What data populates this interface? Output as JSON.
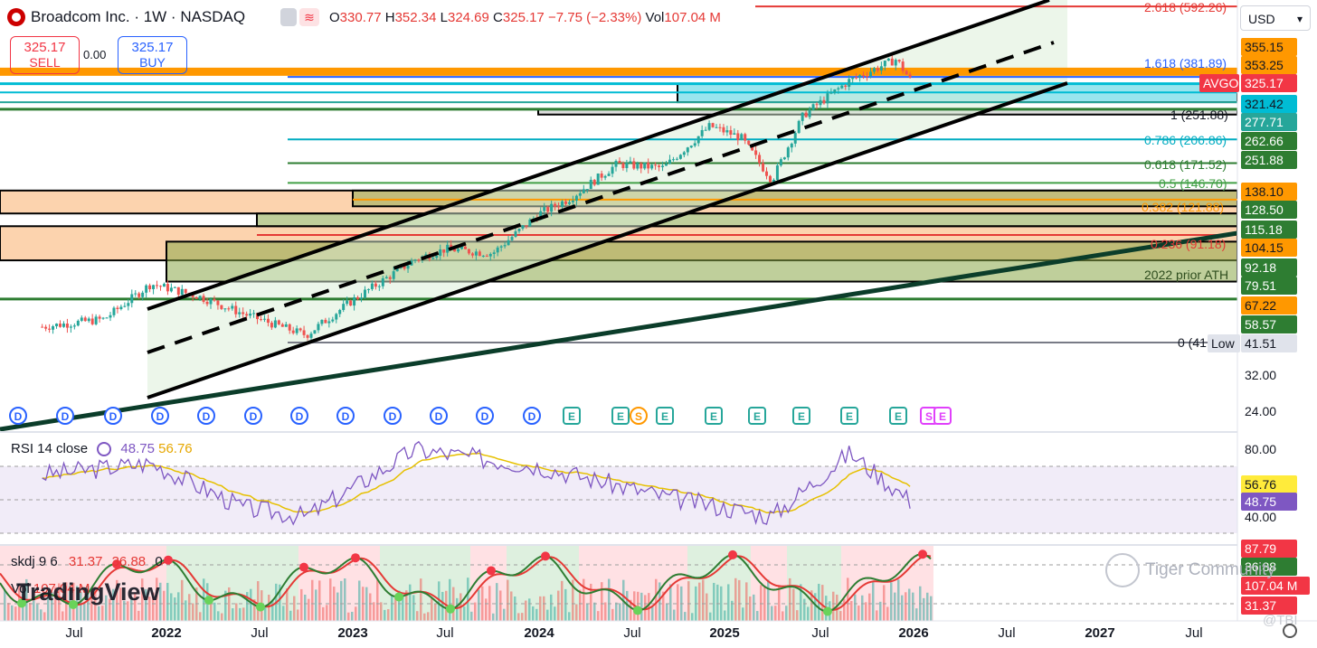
{
  "header": {
    "title": "Broadcom Inc. · 1W · NASDAQ",
    "open_label": "O",
    "open": "330.77",
    "high_label": "H",
    "high": "352.34",
    "low_label": "L",
    "low": "324.69",
    "close_label": "C",
    "close": "325.17",
    "change": "−7.75 (−2.33%)",
    "vol_label": "Vol",
    "vol": "107.04 M"
  },
  "trade": {
    "sell_price": "325.17",
    "sell_label": "SELL",
    "spread": "0.00",
    "buy_price": "325.17",
    "buy_label": "BUY"
  },
  "currency": "USD",
  "symbol_tag": "AVGO",
  "price_tags": [
    {
      "label": "355.15",
      "bg": "#ff9800",
      "fg": "#131722"
    },
    {
      "label": "353.25",
      "bg": "#ff9800",
      "fg": "#131722"
    },
    {
      "label": "325.17",
      "bg": "#f23645",
      "fg": "#ffffff"
    },
    {
      "label": "321.42",
      "bg": "#00bcd4",
      "fg": "#131722"
    },
    {
      "label": "277.71",
      "bg": "#26a69a",
      "fg": "#ffffff"
    },
    {
      "label": "262.66",
      "bg": "#2e7d32",
      "fg": "#ffffff"
    },
    {
      "label": "251.88",
      "bg": "#2e7d32",
      "fg": "#ffffff"
    },
    {
      "label": "138.10",
      "bg": "#ff9800",
      "fg": "#131722"
    },
    {
      "label": "128.50",
      "bg": "#2e7d32",
      "fg": "#ffffff"
    },
    {
      "label": "115.18",
      "bg": "#2e7d32",
      "fg": "#ffffff"
    },
    {
      "label": "104.15",
      "bg": "#ff9800",
      "fg": "#131722"
    },
    {
      "label": "92.18",
      "bg": "#2e7d32",
      "fg": "#ffffff"
    },
    {
      "label": "79.51",
      "bg": "#2e7d32",
      "fg": "#ffffff"
    },
    {
      "label": "67.22",
      "bg": "#ff9800",
      "fg": "#131722"
    },
    {
      "label": "58.57",
      "bg": "#2e7d32",
      "fg": "#ffffff"
    },
    {
      "label": "41.51",
      "bg": "#e0e3eb",
      "fg": "#131722"
    }
  ],
  "low_tag": "Low",
  "axis_ticks": [
    "32.00",
    "24.00"
  ],
  "fib_labels": [
    {
      "text": "2.618 (592.26)",
      "color": "#e53935"
    },
    {
      "text": "1.618 (381.89)",
      "color": "#2962ff"
    },
    {
      "text": "1 (251.88)",
      "color": "#131722"
    },
    {
      "text": "0.786 (206.86)",
      "color": "#00acc1"
    },
    {
      "text": "0.618 (171.52)",
      "color": "#2e7d32"
    },
    {
      "text": "0.5 (146.70)",
      "color": "#43a047"
    },
    {
      "text": "0.382 (121.88)",
      "color": "#ff9800"
    },
    {
      "text": "0.236 (91.18)",
      "color": "#e53935"
    },
    {
      "text": "2022 prior ATH",
      "color": "#2e4d1e"
    },
    {
      "text": "0 (41",
      "color": "#131722"
    }
  ],
  "events": [
    "D",
    "D",
    "D",
    "D",
    "D",
    "D",
    "D",
    "D",
    "D",
    "D",
    "D",
    "D",
    "E",
    "E",
    "S",
    "E",
    "E",
    "E",
    "E",
    "E",
    "E",
    "S",
    "E"
  ],
  "rsi": {
    "title": "RSI 14 close",
    "value": "48.75",
    "ma": "56.76",
    "ticks": [
      "80.00",
      "40.00"
    ],
    "tags": [
      {
        "label": "56.76",
        "bg": "#ffeb3b",
        "fg": "#131722"
      },
      {
        "label": "48.75",
        "bg": "#7e57c2",
        "fg": "#ffffff"
      }
    ]
  },
  "skdj": {
    "title": "skdj 9 6",
    "k": "31.37",
    "d": "36.88",
    "extra": "0",
    "vol_label": "Vol",
    "vol": "107.04 M",
    "tags": [
      {
        "label": "87.79",
        "bg": "#f23645",
        "fg": "#ffffff"
      },
      {
        "label": "36.88",
        "bg": "#2e7d32",
        "fg": "#ffffff"
      },
      {
        "label": "107.04 M",
        "bg": "#f23645",
        "fg": "#ffffff"
      },
      {
        "label": "31.37",
        "bg": "#f23645",
        "fg": "#ffffff"
      }
    ]
  },
  "x_axis": [
    {
      "label": "Jul",
      "bold": false
    },
    {
      "label": "2022",
      "bold": true
    },
    {
      "label": "Jul",
      "bold": false
    },
    {
      "label": "2023",
      "bold": true
    },
    {
      "label": "Jul",
      "bold": false
    },
    {
      "label": "2024",
      "bold": true
    },
    {
      "label": "Jul",
      "bold": false
    },
    {
      "label": "2025",
      "bold": true
    },
    {
      "label": "Jul",
      "bold": false
    },
    {
      "label": "2026",
      "bold": true
    },
    {
      "label": "Jul",
      "bold": false
    },
    {
      "label": "2027",
      "bold": true
    },
    {
      "label": "Jul",
      "bold": false
    }
  ],
  "watermark": "TradingView",
  "community": "Tiger Community",
  "tbi": "@TBI",
  "colors": {
    "up": "#26a69a",
    "down": "#ef5350",
    "rsi": "#7e57c2",
    "rsi_ma": "#e6c000",
    "k_line": "#2e7d32",
    "d_line": "#e53935"
  },
  "chart_data": {
    "type": "candlestick",
    "symbol": "AVGO",
    "interval": "1W",
    "x_range": [
      "2021-05",
      "2027-09"
    ],
    "y_scale": "log",
    "series_close": [
      {
        "date": "2021-05",
        "close": 47
      },
      {
        "date": "2021-09",
        "close": 50
      },
      {
        "date": "2021-12",
        "close": 66
      },
      {
        "date": "2022-03",
        "close": 60
      },
      {
        "date": "2022-06",
        "close": 52
      },
      {
        "date": "2022-10",
        "close": 44
      },
      {
        "date": "2023-01",
        "close": 58
      },
      {
        "date": "2023-05",
        "close": 80
      },
      {
        "date": "2023-07",
        "close": 87
      },
      {
        "date": "2023-10",
        "close": 84
      },
      {
        "date": "2024-01",
        "close": 115
      },
      {
        "date": "2024-03",
        "close": 130
      },
      {
        "date": "2024-06",
        "close": 170
      },
      {
        "date": "2024-09",
        "close": 165
      },
      {
        "date": "2024-12",
        "close": 230
      },
      {
        "date": "2025-02",
        "close": 210
      },
      {
        "date": "2025-04",
        "close": 150
      },
      {
        "date": "2025-06",
        "close": 250
      },
      {
        "date": "2025-09",
        "close": 330
      },
      {
        "date": "2025-12",
        "close": 390
      },
      {
        "date": "2026-01",
        "close": 325.17
      }
    ],
    "rsi_series": [
      {
        "date": "2021-05",
        "rsi": 65
      },
      {
        "date": "2021-12",
        "rsi": 72
      },
      {
        "date": "2022-06",
        "rsi": 45
      },
      {
        "date": "2022-10",
        "rsi": 40
      },
      {
        "date": "2023-05",
        "rsi": 80
      },
      {
        "date": "2024-01",
        "rsi": 70
      },
      {
        "date": "2024-09",
        "rsi": 52
      },
      {
        "date": "2025-04",
        "rsi": 40
      },
      {
        "date": "2025-09",
        "rsi": 78
      },
      {
        "date": "2026-01",
        "rsi": 48.75
      }
    ]
  }
}
